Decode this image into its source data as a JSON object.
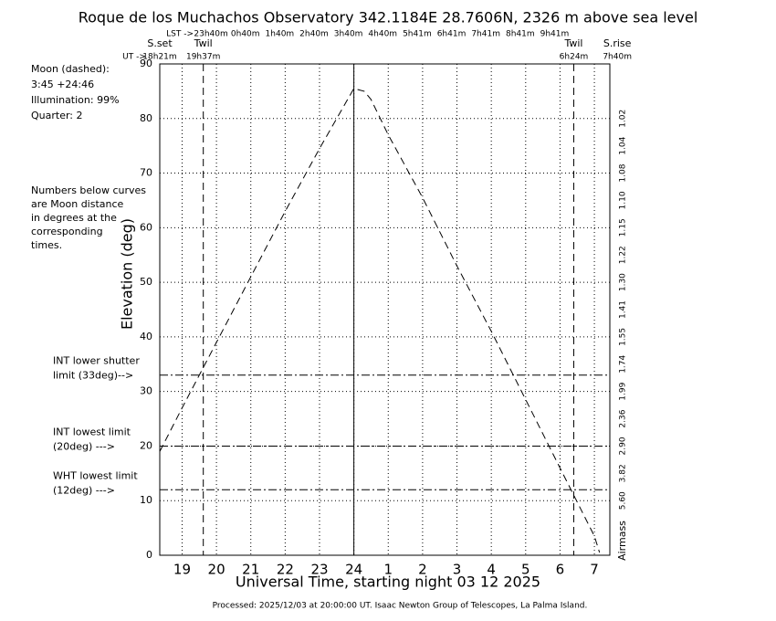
{
  "chart_data": {
    "type": "line",
    "title": "Roque de los Muchachos Observatory 342.1184E  28.7606N, 2326 m above sea level",
    "xlabel": "Universal Time, starting night 03 12 2025",
    "ylabel": "Elevation (deg)",
    "footer": "Processed: 2025/12/03 at 20:00:00 UT. Isaac  Newton Group of Telescopes, La Palma Island.",
    "notes": [
      "Moon (dashed):",
      " 3:45 +24:46",
      "Illumination:  99%",
      "Quarter: 2"
    ],
    "notes2": [
      "Numbers below curves",
      "are Moon distance",
      "in degrees at the",
      "corresponding",
      "times."
    ],
    "xlim": [
      18.35,
      31.45
    ],
    "xticks": [
      19,
      20,
      21,
      22,
      23,
      24,
      {
        "value": 25,
        "label": "1"
      },
      {
        "value": 26,
        "label": "2"
      },
      {
        "value": 27,
        "label": "3"
      },
      {
        "value": 28,
        "label": "4"
      },
      {
        "value": 29,
        "label": "5"
      },
      {
        "value": 30,
        "label": "6"
      },
      {
        "value": 31,
        "label": "7"
      }
    ],
    "ylim": [
      0,
      90
    ],
    "yticks": [
      0,
      10,
      20,
      30,
      40,
      50,
      60,
      70,
      80,
      90
    ],
    "grid": true,
    "midnight": 24,
    "lst_label": "LST ->",
    "lst": [
      {
        "value": 20,
        "label": "23h40m"
      },
      {
        "value": 21,
        "label": "0h40m"
      },
      {
        "value": 22,
        "label": "1h40m"
      },
      {
        "value": 23,
        "label": "2h40m"
      },
      {
        "value": 24,
        "label": "3h40m"
      },
      {
        "value": 25,
        "label": "4h40m"
      },
      {
        "value": 26,
        "label": "5h41m"
      },
      {
        "value": 27,
        "label": "6h41m"
      },
      {
        "value": 28,
        "label": "7h41m"
      },
      {
        "value": 29,
        "label": "8h41m"
      },
      {
        "value": 30,
        "label": "9h41m"
      }
    ],
    "ut_label": "UT ->",
    "events": [
      {
        "name": "S.set",
        "ut": "18h21m",
        "value": 18.35,
        "line": false
      },
      {
        "name": "Twil",
        "ut": "19h37m",
        "value": 19.617,
        "line": true
      },
      {
        "name": "Twil",
        "ut": "6h24m",
        "value": 30.4,
        "line": true
      },
      {
        "name": "S.rise",
        "ut": "7h40m",
        "value": 31.667,
        "line": false
      }
    ],
    "limits": [
      {
        "value": 33,
        "label": [
          "INT lower shutter",
          "limit (33deg)-->"
        ]
      },
      {
        "value": 20,
        "label": [
          "INT lowest limit",
          "(20deg) --->"
        ]
      },
      {
        "value": 12,
        "label": [
          "WHT lowest limit",
          "(12deg) --->"
        ]
      }
    ],
    "airmass_title": "Airmass",
    "airmass": [
      {
        "value": 80,
        "label": "1.02"
      },
      {
        "value": 75,
        "label": "1.04"
      },
      {
        "value": 70,
        "label": "1.08"
      },
      {
        "value": 65,
        "label": "1.10"
      },
      {
        "value": 60,
        "label": "1.15"
      },
      {
        "value": 55,
        "label": "1.22"
      },
      {
        "value": 50,
        "label": "1.30"
      },
      {
        "value": 45,
        "label": "1.41"
      },
      {
        "value": 40,
        "label": "1.55"
      },
      {
        "value": 35,
        "label": "1.74"
      },
      {
        "value": 30,
        "label": "1.99"
      },
      {
        "value": 25,
        "label": "2.36"
      },
      {
        "value": 20,
        "label": "2.90"
      },
      {
        "value": 15,
        "label": "3.82"
      },
      {
        "value": 10,
        "label": "5.60"
      }
    ],
    "moon": {
      "x": [
        18.35,
        19,
        20,
        21,
        22,
        23,
        23.5,
        24,
        24.3,
        24.5,
        25,
        26,
        27,
        28,
        29,
        30,
        31,
        31.15
      ],
      "values": [
        19,
        27,
        39,
        51,
        63,
        74.5,
        80,
        85.5,
        85,
        83.5,
        77,
        65.5,
        53,
        41,
        28.5,
        16,
        3.5,
        0.5
      ]
    }
  }
}
